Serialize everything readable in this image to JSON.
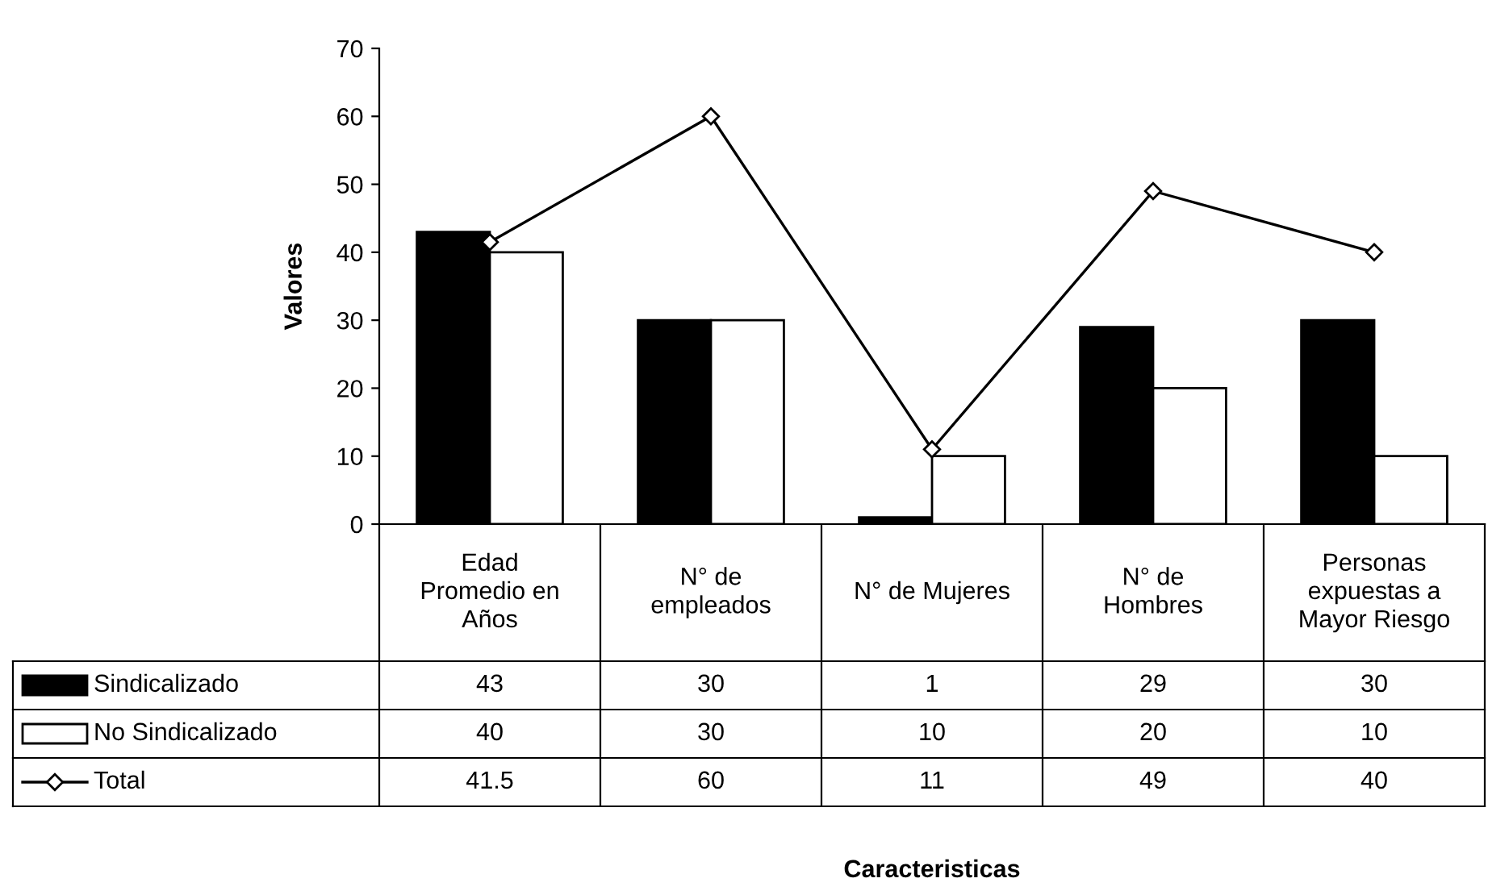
{
  "chart_data": {
    "type": "bar",
    "ylabel": "Valores",
    "annotations": [
      "Caracteristicas"
    ],
    "categories": [
      "Edad\nPromedio en\nAños",
      "N° de\nempleados",
      "N° de Mujeres",
      "N° de\nHombres",
      "Personas\nexpuestas a\nMayor Riesgo"
    ],
    "series": [
      {
        "name": "Sindicalizado",
        "color": "#000000",
        "values": [
          43,
          30,
          1,
          29,
          30
        ]
      },
      {
        "name": "No Sindicalizado",
        "color": "#ffffff",
        "values": [
          40,
          30,
          10,
          20,
          10
        ]
      },
      {
        "name": "Total",
        "type": "line",
        "color": "#000000",
        "marker": "diamond",
        "values": [
          41.5,
          60,
          11,
          49,
          40
        ]
      }
    ],
    "ylim": [
      0,
      70
    ],
    "yticks": [
      0,
      10,
      20,
      30,
      40,
      50,
      60,
      70
    ],
    "grid": false,
    "data_labels": true,
    "legend": "bottom left"
  }
}
